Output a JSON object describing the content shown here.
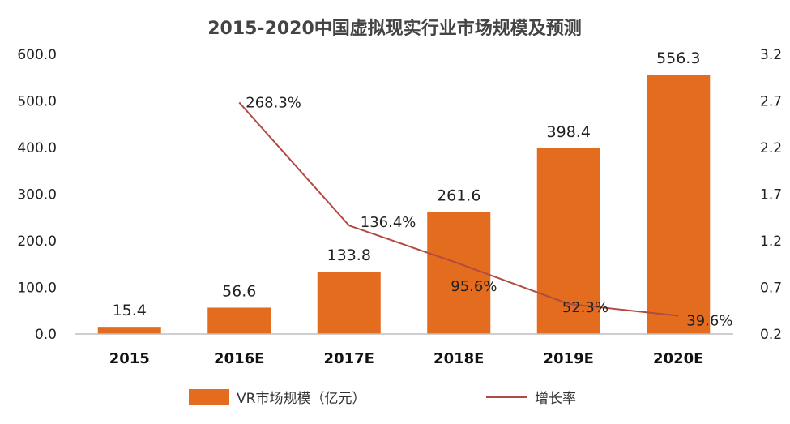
{
  "chart_data": {
    "type": "bar",
    "title": "2015-2020中国虚拟现实行业市场规模及预测",
    "categories": [
      "2015",
      "2016E",
      "2017E",
      "2018E",
      "2019E",
      "2020E"
    ],
    "series": [
      {
        "name": "VR市场规模（亿元）",
        "type": "bar",
        "axis": "left",
        "values": [
          15.4,
          56.6,
          133.8,
          261.6,
          398.4,
          556.3
        ],
        "labels": [
          "15.4",
          "56.6",
          "133.8",
          "261.6",
          "398.4",
          "556.3"
        ],
        "color": "#E36C1E"
      },
      {
        "name": "增长率",
        "type": "line",
        "axis": "right",
        "values": [
          null,
          2.683,
          1.364,
          0.956,
          0.523,
          0.396
        ],
        "labels": [
          "",
          "268.3%",
          "136.4%",
          "95.6%",
          "52.3%",
          "39.6%"
        ],
        "color": "#B14A42"
      }
    ],
    "y_left": {
      "min": 0,
      "max": 600,
      "ticks": [
        "0.0",
        "100.0",
        "200.0",
        "300.0",
        "400.0",
        "500.0",
        "600.0"
      ]
    },
    "y_right": {
      "min": 0.2,
      "max": 3.2,
      "ticks": [
        "0.2",
        "0.7",
        "1.2",
        "1.7",
        "2.2",
        "2.7",
        "3.2"
      ]
    },
    "grid": false,
    "legend_position": "bottom"
  },
  "colors": {
    "bar": "#E36C1E",
    "line": "#B14A42",
    "axis": "#BFBFBF"
  }
}
